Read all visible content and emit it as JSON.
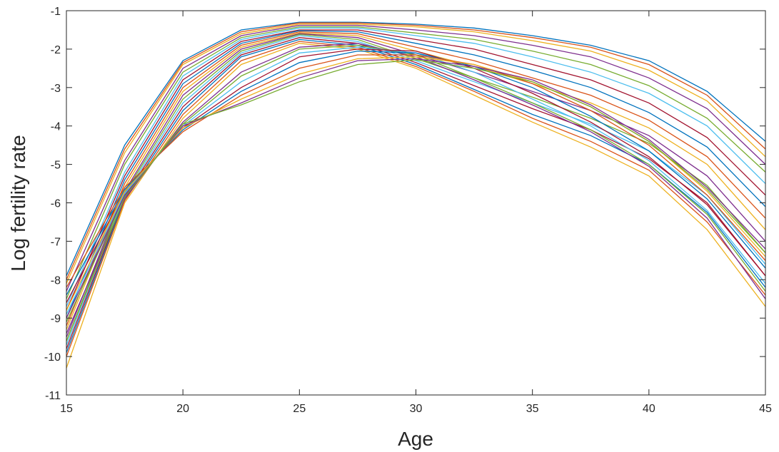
{
  "chart_data": {
    "type": "line",
    "title": "",
    "xlabel": "Age",
    "ylabel": "Log fertility rate",
    "xlim": [
      15,
      45
    ],
    "ylim": [
      -11,
      -1
    ],
    "xticks": [
      "15",
      "20",
      "25",
      "30",
      "35",
      "40",
      "45"
    ],
    "yticks": [
      "-1",
      "-2",
      "-3",
      "-4",
      "-5",
      "-6",
      "-7",
      "-8",
      "-9",
      "-10",
      "-11"
    ],
    "grid": false,
    "legend": "none",
    "x": [
      15,
      17.5,
      20,
      22.5,
      25,
      27.5,
      30,
      32.5,
      35,
      37.5,
      40,
      42.5,
      45
    ],
    "colors": [
      "#0072BD",
      "#D95319",
      "#EDB120",
      "#7E2F8E",
      "#77AC30",
      "#4DBEEE",
      "#A2142F"
    ],
    "series": [
      {
        "values": [
          -7.9,
          -4.5,
          -2.3,
          -1.5,
          -1.3,
          -1.3,
          -1.35,
          -1.45,
          -1.65,
          -1.9,
          -2.3,
          -3.1,
          -4.4
        ]
      },
      {
        "values": [
          -8.0,
          -4.6,
          -2.35,
          -1.55,
          -1.32,
          -1.32,
          -1.38,
          -1.5,
          -1.7,
          -1.95,
          -2.4,
          -3.2,
          -4.6
        ]
      },
      {
        "values": [
          -8.1,
          -4.7,
          -2.4,
          -1.6,
          -1.35,
          -1.35,
          -1.42,
          -1.55,
          -1.78,
          -2.05,
          -2.55,
          -3.35,
          -4.8
        ]
      },
      {
        "values": [
          -8.3,
          -4.9,
          -2.5,
          -1.65,
          -1.38,
          -1.38,
          -1.5,
          -1.65,
          -1.9,
          -2.2,
          -2.75,
          -3.55,
          -5.0
        ]
      },
      {
        "values": [
          -8.5,
          -5.0,
          -2.6,
          -1.7,
          -1.42,
          -1.42,
          -1.58,
          -1.75,
          -2.05,
          -2.4,
          -2.95,
          -3.8,
          -5.2
        ]
      },
      {
        "values": [
          -8.7,
          -5.2,
          -2.7,
          -1.75,
          -1.45,
          -1.45,
          -1.65,
          -1.85,
          -2.2,
          -2.6,
          -3.15,
          -4.0,
          -5.5
        ]
      },
      {
        "values": [
          -8.8,
          -5.3,
          -2.8,
          -1.8,
          -1.5,
          -1.5,
          -1.75,
          -2.0,
          -2.4,
          -2.8,
          -3.4,
          -4.3,
          -5.8
        ]
      },
      {
        "values": [
          -9.0,
          -5.4,
          -2.9,
          -1.85,
          -1.52,
          -1.55,
          -1.85,
          -2.15,
          -2.55,
          -3.0,
          -3.65,
          -4.55,
          -6.1
        ]
      },
      {
        "values": [
          -9.2,
          -5.5,
          -3.0,
          -1.9,
          -1.55,
          -1.6,
          -1.95,
          -2.3,
          -2.75,
          -3.2,
          -3.85,
          -4.8,
          -6.4
        ]
      },
      {
        "values": [
          -9.3,
          -5.6,
          -3.1,
          -1.95,
          -1.58,
          -1.65,
          -2.05,
          -2.45,
          -2.9,
          -3.4,
          -4.05,
          -5.0,
          -6.7
        ]
      },
      {
        "values": [
          -9.5,
          -5.7,
          -3.2,
          -2.0,
          -1.6,
          -1.7,
          -2.15,
          -2.6,
          -3.1,
          -3.6,
          -4.25,
          -5.3,
          -7.0
        ]
      },
      {
        "values": [
          -9.6,
          -5.75,
          -3.3,
          -2.05,
          -1.62,
          -1.75,
          -2.25,
          -2.75,
          -3.25,
          -3.8,
          -4.45,
          -5.55,
          -7.3
        ]
      },
      {
        "values": [
          -9.7,
          -5.8,
          -3.4,
          -2.1,
          -1.65,
          -1.8,
          -2.3,
          -2.85,
          -3.4,
          -3.95,
          -4.65,
          -5.8,
          -7.6
        ]
      },
      {
        "values": [
          -9.8,
          -5.85,
          -3.5,
          -2.15,
          -1.7,
          -1.85,
          -2.35,
          -2.95,
          -3.55,
          -4.1,
          -4.85,
          -6.0,
          -7.9
        ]
      },
      {
        "values": [
          -9.9,
          -5.9,
          -3.6,
          -2.2,
          -1.75,
          -1.9,
          -2.4,
          -3.05,
          -3.7,
          -4.25,
          -5.0,
          -6.25,
          -8.2
        ]
      },
      {
        "values": [
          -10.0,
          -5.95,
          -3.7,
          -2.3,
          -1.8,
          -1.95,
          -2.45,
          -3.1,
          -3.8,
          -4.4,
          -5.15,
          -6.5,
          -8.4
        ]
      },
      {
        "values": [
          -10.3,
          -6.0,
          -3.8,
          -2.4,
          -1.85,
          -2.0,
          -2.5,
          -3.2,
          -3.9,
          -4.55,
          -5.3,
          -6.7,
          -8.7
        ]
      },
      {
        "values": [
          -9.4,
          -5.9,
          -3.9,
          -2.6,
          -1.95,
          -1.85,
          -2.2,
          -2.8,
          -3.45,
          -4.15,
          -5.05,
          -6.4,
          -8.5
        ]
      },
      {
        "values": [
          -9.1,
          -5.8,
          -3.95,
          -2.7,
          -2.0,
          -1.9,
          -2.15,
          -2.75,
          -3.4,
          -4.1,
          -5.0,
          -6.3,
          -8.3
        ]
      },
      {
        "values": [
          -8.9,
          -5.75,
          -4.0,
          -2.85,
          -2.1,
          -1.95,
          -2.1,
          -2.6,
          -3.3,
          -4.0,
          -4.9,
          -6.2,
          -8.1
        ]
      },
      {
        "values": [
          -8.6,
          -5.7,
          -4.05,
          -3.0,
          -2.2,
          -2.0,
          -2.05,
          -2.5,
          -3.15,
          -3.9,
          -4.8,
          -6.05,
          -7.9
        ]
      },
      {
        "values": [
          -8.4,
          -5.65,
          -4.1,
          -3.1,
          -2.35,
          -2.05,
          -2.1,
          -2.45,
          -3.0,
          -3.75,
          -4.65,
          -5.9,
          -7.7
        ]
      },
      {
        "values": [
          -8.2,
          -5.6,
          -4.15,
          -3.2,
          -2.5,
          -2.15,
          -2.15,
          -2.4,
          -2.9,
          -3.6,
          -4.5,
          -5.8,
          -7.5
        ]
      },
      {
        "values": [
          -8.8,
          -5.7,
          -4.05,
          -3.3,
          -2.65,
          -2.25,
          -2.2,
          -2.4,
          -2.85,
          -3.5,
          -4.4,
          -5.7,
          -7.4
        ]
      },
      {
        "values": [
          -9.0,
          -5.8,
          -4.0,
          -3.4,
          -2.75,
          -2.3,
          -2.25,
          -2.45,
          -2.8,
          -3.45,
          -4.35,
          -5.6,
          -7.2
        ]
      },
      {
        "values": [
          -9.6,
          -5.85,
          -3.95,
          -3.45,
          -2.85,
          -2.4,
          -2.28,
          -2.5,
          -2.85,
          -3.5,
          -4.4,
          -5.65,
          -7.3
        ]
      }
    ]
  }
}
